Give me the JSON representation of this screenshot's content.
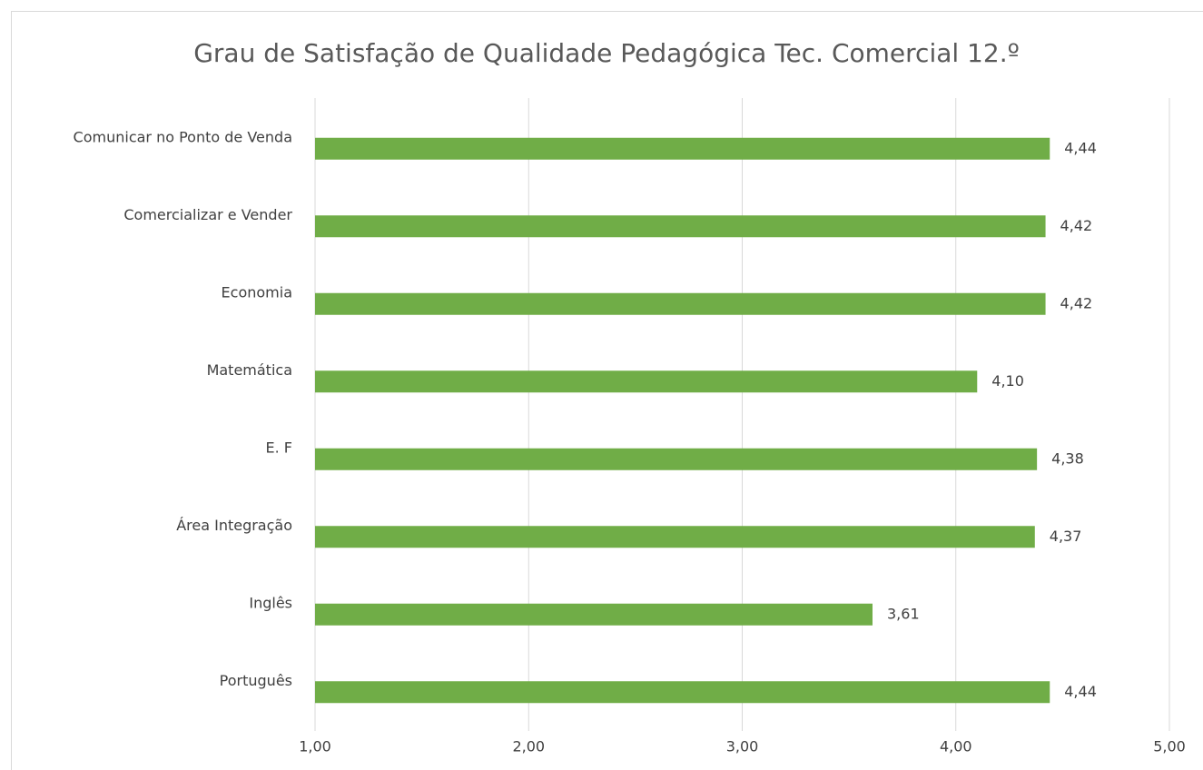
{
  "chart_data": {
    "type": "bar",
    "orientation": "horizontal",
    "title": "Grau de Satisfação de Qualidade Pedagógica Tec. Comercial 12.º",
    "categories": [
      "Comunicar no Ponto de Venda",
      "Comercializar e Vender",
      "Economia",
      "Matemática",
      "E. F",
      "Área Integração",
      "Inglês",
      "Português"
    ],
    "values": [
      4.44,
      4.42,
      4.42,
      4.1,
      4.38,
      4.37,
      3.61,
      4.44
    ],
    "value_labels": [
      "4,44",
      "4,42",
      "4,42",
      "4,10",
      "4,38",
      "4,37",
      "3,61",
      "4,44"
    ],
    "color": "#70ad47",
    "xlim": [
      1,
      5
    ],
    "xticks": [
      {
        "value": 1,
        "label": "1,00"
      },
      {
        "value": 2,
        "label": "2,00"
      },
      {
        "value": 3,
        "label": "3,00"
      },
      {
        "value": 4,
        "label": "4,00"
      },
      {
        "value": 5,
        "label": "5,00"
      }
    ],
    "grid": true
  }
}
